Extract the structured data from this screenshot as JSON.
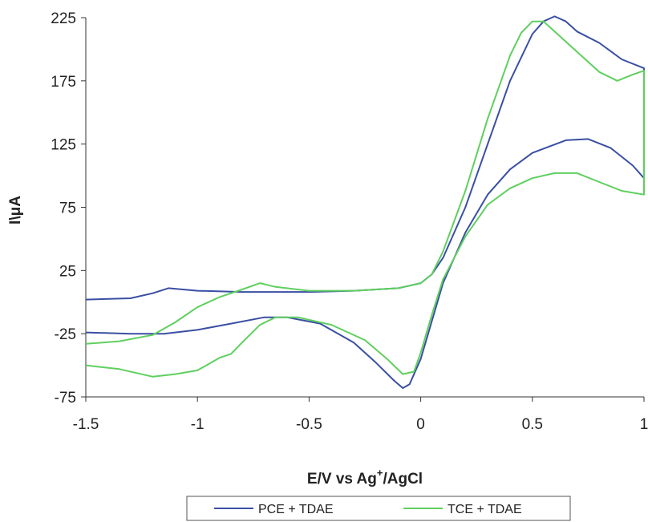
{
  "chart_data": {
    "type": "line",
    "xlabel": "E/V vs Ag",
    "xlabel_sup": "+",
    "xlabel_tail": "/AgCl",
    "ylabel": "I\\μA",
    "xlim": [
      -1.5,
      1
    ],
    "ylim": [
      -75,
      225
    ],
    "x_ticks": [
      -1.5,
      -1,
      -0.5,
      0,
      0.5,
      1
    ],
    "x_tick_labels": [
      "-1.5",
      "-1",
      "-0.5",
      "0",
      "0.5",
      "1"
    ],
    "y_ticks": [
      -75,
      -25,
      25,
      75,
      125,
      175,
      225
    ],
    "y_tick_labels": [
      "-75",
      "-25",
      "25",
      "75",
      "125",
      "175",
      "225"
    ],
    "grid": false,
    "legend_position": "bottom",
    "series": [
      {
        "name": "PCE + TDAE",
        "color": "#3a4fa3",
        "points": [
          [
            -1.5,
            2
          ],
          [
            -1.3,
            3
          ],
          [
            -1.2,
            7
          ],
          [
            -1.13,
            11
          ],
          [
            -1.0,
            9
          ],
          [
            -0.8,
            8
          ],
          [
            -0.5,
            8
          ],
          [
            -0.3,
            9
          ],
          [
            -0.1,
            11
          ],
          [
            0.0,
            15
          ],
          [
            0.05,
            22
          ],
          [
            0.1,
            35
          ],
          [
            0.2,
            75
          ],
          [
            0.3,
            125
          ],
          [
            0.4,
            175
          ],
          [
            0.5,
            212
          ],
          [
            0.55,
            222
          ],
          [
            0.6,
            226
          ],
          [
            0.65,
            222
          ],
          [
            0.7,
            214
          ],
          [
            0.8,
            205
          ],
          [
            0.9,
            192
          ],
          [
            1.0,
            185
          ],
          [
            1.0,
            98
          ],
          [
            0.95,
            108
          ],
          [
            0.85,
            122
          ],
          [
            0.75,
            129
          ],
          [
            0.65,
            128
          ],
          [
            0.5,
            118
          ],
          [
            0.4,
            105
          ],
          [
            0.3,
            85
          ],
          [
            0.2,
            55
          ],
          [
            0.1,
            15
          ],
          [
            0.05,
            -15
          ],
          [
            0.0,
            -45
          ],
          [
            -0.05,
            -65
          ],
          [
            -0.08,
            -68
          ],
          [
            -0.12,
            -62
          ],
          [
            -0.2,
            -48
          ],
          [
            -0.3,
            -32
          ],
          [
            -0.45,
            -17
          ],
          [
            -0.6,
            -12
          ],
          [
            -0.7,
            -12
          ],
          [
            -0.85,
            -17
          ],
          [
            -1.0,
            -22
          ],
          [
            -1.15,
            -25
          ],
          [
            -1.3,
            -25
          ],
          [
            -1.5,
            -24
          ]
        ]
      },
      {
        "name": "TCE + TDAE",
        "color": "#5fcf5f",
        "points": [
          [
            -1.5,
            -33
          ],
          [
            -1.35,
            -31
          ],
          [
            -1.2,
            -26
          ],
          [
            -1.1,
            -16
          ],
          [
            -1.0,
            -4
          ],
          [
            -0.9,
            4
          ],
          [
            -0.8,
            10
          ],
          [
            -0.72,
            15
          ],
          [
            -0.65,
            12
          ],
          [
            -0.5,
            9
          ],
          [
            -0.3,
            9
          ],
          [
            -0.1,
            11
          ],
          [
            0.0,
            15
          ],
          [
            0.05,
            22
          ],
          [
            0.1,
            40
          ],
          [
            0.2,
            88
          ],
          [
            0.3,
            145
          ],
          [
            0.4,
            195
          ],
          [
            0.45,
            213
          ],
          [
            0.5,
            222
          ],
          [
            0.55,
            222
          ],
          [
            0.6,
            214
          ],
          [
            0.7,
            198
          ],
          [
            0.8,
            182
          ],
          [
            0.88,
            175
          ],
          [
            0.95,
            180
          ],
          [
            1.0,
            183
          ],
          [
            1.0,
            85
          ],
          [
            0.9,
            88
          ],
          [
            0.8,
            95
          ],
          [
            0.7,
            102
          ],
          [
            0.6,
            102
          ],
          [
            0.5,
            98
          ],
          [
            0.4,
            90
          ],
          [
            0.3,
            77
          ],
          [
            0.2,
            52
          ],
          [
            0.1,
            18
          ],
          [
            0.05,
            -10
          ],
          [
            0.0,
            -40
          ],
          [
            -0.03,
            -55
          ],
          [
            -0.08,
            -57
          ],
          [
            -0.15,
            -45
          ],
          [
            -0.25,
            -30
          ],
          [
            -0.4,
            -18
          ],
          [
            -0.55,
            -12
          ],
          [
            -0.65,
            -12
          ],
          [
            -0.72,
            -18
          ],
          [
            -0.8,
            -32
          ],
          [
            -0.85,
            -41
          ],
          [
            -0.9,
            -44
          ],
          [
            -1.0,
            -54
          ],
          [
            -1.1,
            -57
          ],
          [
            -1.2,
            -59
          ],
          [
            -1.35,
            -53
          ],
          [
            -1.5,
            -50
          ]
        ]
      }
    ]
  }
}
